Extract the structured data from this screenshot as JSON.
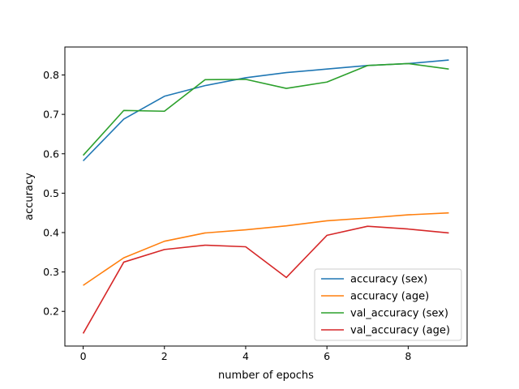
{
  "chart_data": {
    "type": "line",
    "xlabel": "number of epochs",
    "ylabel": "accuracy",
    "xlim": [
      -0.45,
      9.45
    ],
    "ylim": [
      0.112,
      0.871
    ],
    "xticks": [
      0,
      2,
      4,
      6,
      8
    ],
    "yticks": [
      0.2,
      0.3,
      0.4,
      0.5,
      0.6,
      0.7,
      0.8
    ],
    "legend_position": "lower-right",
    "grid": false,
    "x": [
      0,
      1,
      2,
      3,
      4,
      5,
      6,
      7,
      8,
      9
    ],
    "series": [
      {
        "name": "accuracy (sex)",
        "color": "#1f77b4",
        "values": [
          0.582,
          0.688,
          0.746,
          0.773,
          0.793,
          0.806,
          0.815,
          0.824,
          0.829,
          0.838
        ]
      },
      {
        "name": "accuracy (age)",
        "color": "#ff7f0e",
        "values": [
          0.266,
          0.336,
          0.378,
          0.399,
          0.407,
          0.417,
          0.43,
          0.437,
          0.445,
          0.45
        ]
      },
      {
        "name": "val_accuracy (sex)",
        "color": "#2ca02c",
        "values": [
          0.596,
          0.71,
          0.708,
          0.788,
          0.789,
          0.766,
          0.782,
          0.824,
          0.829,
          0.815
        ]
      },
      {
        "name": "val_accuracy (age)",
        "color": "#d62728",
        "values": [
          0.144,
          0.325,
          0.357,
          0.368,
          0.364,
          0.286,
          0.393,
          0.416,
          0.409,
          0.399
        ]
      }
    ]
  }
}
